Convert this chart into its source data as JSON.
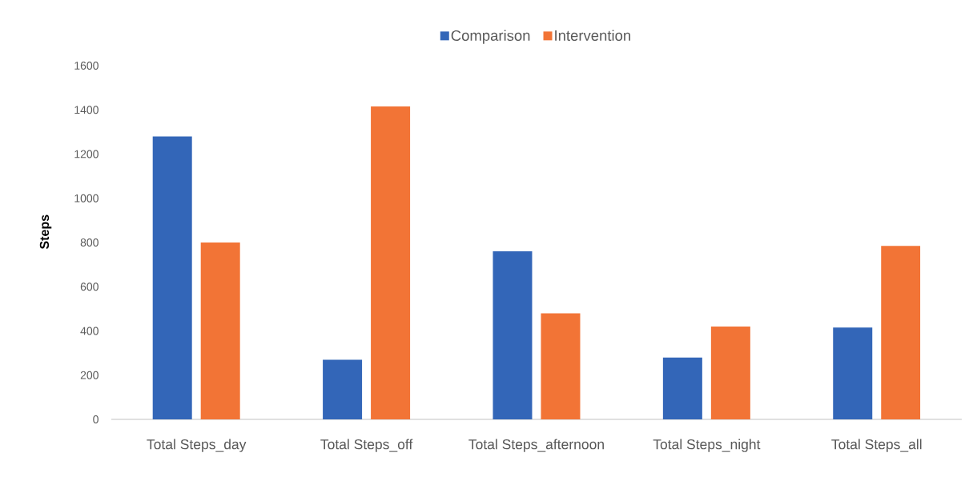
{
  "chart_data": {
    "type": "bar",
    "ylabel": "Steps",
    "categories": [
      "Total Steps_day",
      "Total Steps_off",
      "Total Steps_afternoon",
      "Total  Steps_night",
      "Total  Steps_all"
    ],
    "series": [
      {
        "name": "Comparison",
        "color": "#3366b8",
        "values": [
          1280,
          270,
          760,
          280,
          415
        ]
      },
      {
        "name": "Intervention",
        "color": "#f27436",
        "values": [
          800,
          1415,
          480,
          420,
          785
        ]
      }
    ],
    "ylim": [
      0,
      1600
    ],
    "yticks": [
      0,
      200,
      400,
      600,
      800,
      1000,
      1200,
      1400,
      1600
    ],
    "legend": "top",
    "grid": false
  }
}
